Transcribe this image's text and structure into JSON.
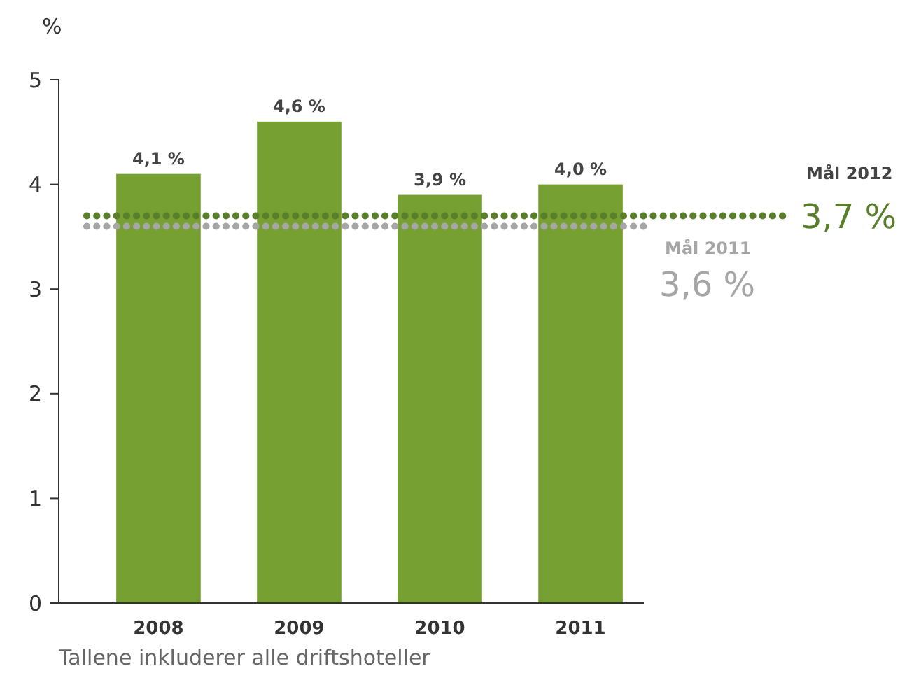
{
  "chart_data": {
    "type": "bar",
    "ylabel": "%",
    "categories": [
      "2008",
      "2009",
      "2010",
      "2011"
    ],
    "values": [
      4.1,
      4.6,
      3.9,
      4.0
    ],
    "color": "#76a032",
    "value_labels": [
      "4,1 %",
      "4,6 %",
      "3,9 %",
      "4,0 %"
    ],
    "ylim": [
      0,
      5
    ],
    "yticks": [
      0,
      1,
      2,
      3,
      4,
      5
    ],
    "ref_lines": [
      {
        "axis": "y",
        "value": 3.7,
        "label": "Mål 2012",
        "color": "#5a7f2a",
        "line_style": "dotted"
      },
      {
        "axis": "y",
        "value": 3.6,
        "label": "Mål 2011",
        "color": "#a6a6a6",
        "line_style": "dotted"
      }
    ],
    "annotations": [
      "3,7 %",
      "3,6 %",
      "Tallene inkluderer alle driftshoteller"
    ]
  }
}
